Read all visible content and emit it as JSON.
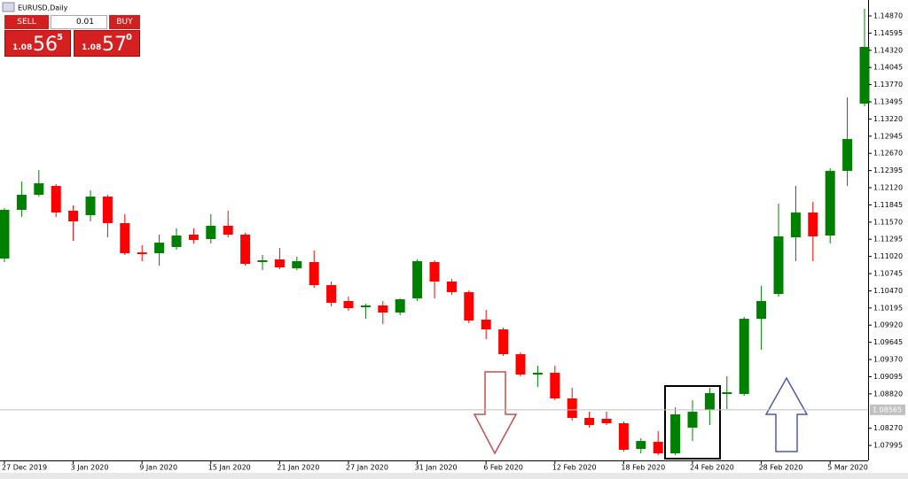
{
  "window_title": "EURUSD,Daily",
  "trade_panel": {
    "sell_label": "SELL",
    "lot": "0.01",
    "buy_label": "BUY",
    "bid": {
      "prefix": "1.08",
      "big": "56",
      "sup": "5"
    },
    "ask": {
      "prefix": "1.08",
      "big": "57",
      "sup": "0"
    }
  },
  "chart_data": {
    "type": "candlestick",
    "up_color": "#008000",
    "down_color": "#ff0000",
    "categories": [
      "27 Dec 2019",
      null,
      null,
      null,
      "3 Jan 2020",
      null,
      null,
      null,
      "9 Jan 2020",
      null,
      null,
      null,
      "15 Jan 2020",
      null,
      null,
      null,
      "21 Jan 2020",
      null,
      null,
      null,
      "27 Jan 2020",
      null,
      null,
      null,
      "31 Jan 2020",
      null,
      null,
      null,
      "6 Feb 2020",
      null,
      null,
      null,
      "12 Feb 2020",
      null,
      null,
      null,
      "18 Feb 2020",
      null,
      null,
      null,
      "24 Feb 2020",
      null,
      null,
      null,
      "28 Feb 2020",
      null,
      null,
      null,
      "5 Mar 2020",
      null,
      null
    ],
    "open": [
      1.10986,
      1.11766,
      1.12007,
      1.12149,
      1.11752,
      1.11681,
      1.11978,
      1.11553,
      1.11085,
      1.11071,
      1.11171,
      1.11369,
      1.11298,
      1.11511,
      1.11369,
      1.1093,
      1.10972,
      1.1083,
      1.1093,
      1.10561,
      1.10306,
      1.10207,
      1.10235,
      1.10122,
      1.10348,
      1.1093,
      1.10618,
      1.10448,
      1.10008,
      1.09852,
      1.09455,
      1.09129,
      1.09158,
      1.08747,
      1.08435,
      1.08421,
      1.0835,
      1.07939,
      1.08052,
      1.07868,
      1.08279,
      1.08562,
      1.08818,
      1.08818,
      1.10022,
      1.10419,
      1.11326,
      1.11723,
      1.11355,
      1.12389,
      1.13467
    ],
    "high": [
      1.11794,
      1.12219,
      1.12404,
      1.12177,
      1.11837,
      1.12078,
      1.12007,
      1.11695,
      1.11199,
      1.11369,
      1.11468,
      1.11468,
      1.11695,
      1.11752,
      1.11397,
      1.11043,
      1.11156,
      1.11015,
      1.11114,
      1.10618,
      1.10377,
      1.10263,
      1.10306,
      1.10348,
      1.10972,
      1.10958,
      1.1066,
      1.10476,
      1.10164,
      1.09881,
      1.09484,
      1.09271,
      1.09271,
      1.08917,
      1.08534,
      1.08534,
      1.08378,
      1.08109,
      1.08222,
      1.08605,
      1.08718,
      1.08917,
      1.09101,
      1.10051,
      1.10547,
      1.11865,
      1.12149,
      1.11893,
      1.12432,
      1.13566,
      1.14983
    ],
    "low": [
      1.1093,
      1.11652,
      1.11978,
      1.11652,
      1.1127,
      1.11582,
      1.11326,
      1.11043,
      1.10944,
      1.10873,
      1.11128,
      1.11227,
      1.11227,
      1.11326,
      1.10873,
      1.10802,
      1.10816,
      1.10802,
      1.10518,
      1.10221,
      1.1015,
      1.10022,
      1.09937,
      1.10079,
      1.10306,
      1.10348,
      1.10405,
      1.09952,
      1.09696,
      1.09427,
      1.09101,
      1.08931,
      1.08718,
      1.08392,
      1.08279,
      1.08322,
      1.07896,
      1.07868,
      1.0784,
      1.0784,
      1.08066,
      1.08322,
      1.08577,
      1.08789,
      1.09526,
      1.10377,
      1.10944,
      1.10944,
      1.11227,
      1.12149,
      1.13424
    ],
    "close": [
      1.11766,
      1.12007,
      1.12191,
      1.11723,
      1.11582,
      1.11978,
      1.11553,
      1.11071,
      1.11057,
      1.11241,
      1.11355,
      1.11284,
      1.11511,
      1.11369,
      1.10901,
      1.10958,
      1.10845,
      1.10944,
      1.10561,
      1.10278,
      1.10192,
      1.10235,
      1.10122,
      1.10334,
      1.10944,
      1.10618,
      1.10448,
      1.09994,
      1.09852,
      1.09455,
      1.09129,
      1.09158,
      1.08747,
      1.08435,
      1.08322,
      1.0835,
      1.07925,
      1.08066,
      1.07868,
      1.08492,
      1.08534,
      1.08832,
      1.08846,
      1.10022,
      1.10306,
      1.11341,
      1.11723,
      1.11341,
      1.12389,
      1.129,
      1.14374
    ],
    "ylim": [
      1.07755,
      1.15125
    ],
    "yticks": [
      1.07995,
      {
        "value": 1.0827,
        "label": "1.08270"
      },
      {
        "value": 1.0882,
        "label": "1.08820"
      },
      1.09095,
      {
        "value": 1.0937,
        "label": "1.09370"
      },
      1.09645,
      {
        "value": 1.0992,
        "label": "1.09920"
      },
      1.10195,
      {
        "value": 1.1047,
        "label": "1.10470"
      },
      1.10745,
      {
        "value": 1.1102,
        "label": "1.11020"
      },
      1.11295,
      {
        "value": 1.1157,
        "label": "1.11570"
      },
      1.11845,
      {
        "value": 1.1212,
        "label": "1.12120"
      },
      1.12395,
      {
        "value": 1.1267,
        "label": "1.12670"
      },
      1.12945,
      {
        "value": 1.1322,
        "label": "1.13220"
      },
      1.13495,
      {
        "value": 1.1377,
        "label": "1.13770"
      },
      1.14045,
      {
        "value": 1.1432,
        "label": "1.14320"
      },
      1.14595,
      {
        "value": 1.1487,
        "label": "1.14870"
      }
    ],
    "current_price": 1.08565
  }
}
